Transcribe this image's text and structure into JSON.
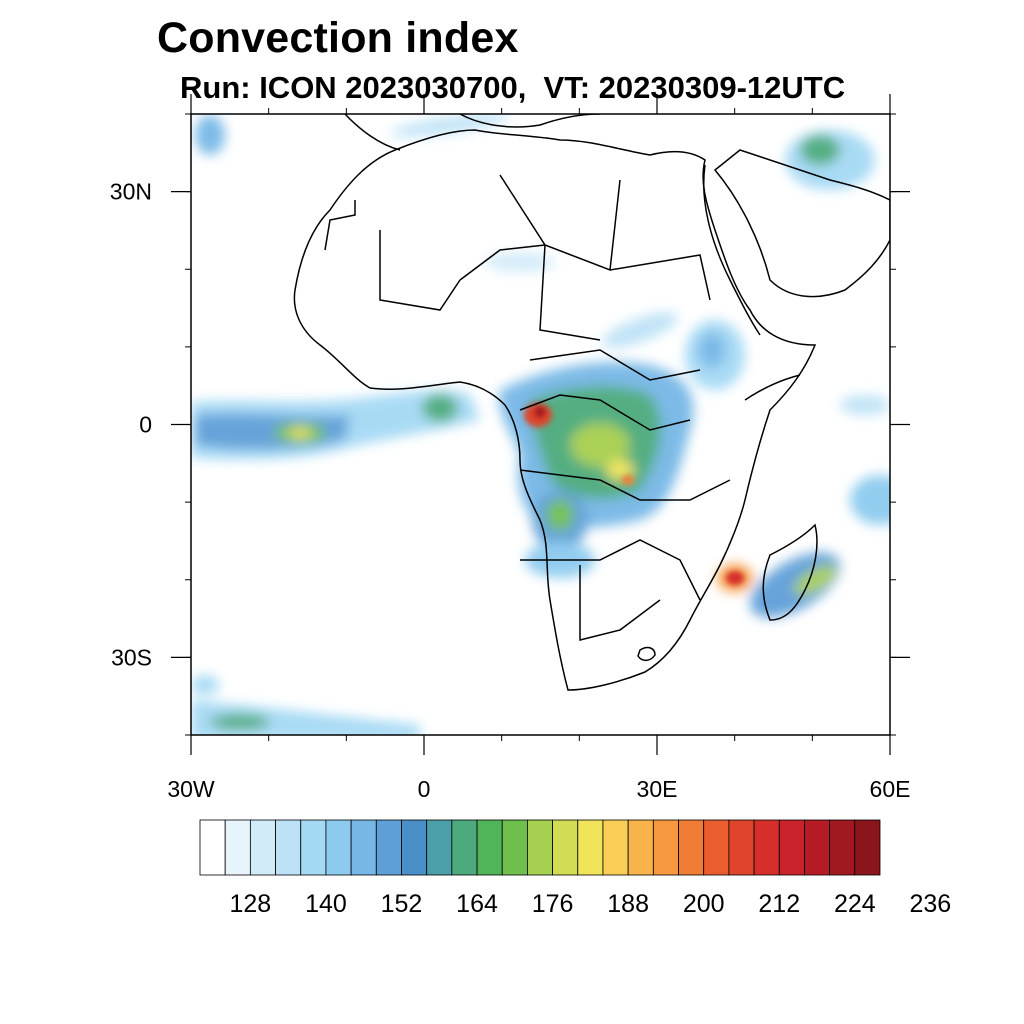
{
  "title": "Convection index",
  "subtitle": "Run: ICON 2023030700,  VT: 20230309-12UTC",
  "map": {
    "lon_range": [
      -30,
      60
    ],
    "lat_range": [
      -40,
      40
    ],
    "lon_ticks": [
      {
        "value": -30,
        "label": "30W"
      },
      {
        "value": 0,
        "label": "0"
      },
      {
        "value": 30,
        "label": "30E"
      },
      {
        "value": 60,
        "label": "60E"
      }
    ],
    "lat_ticks": [
      {
        "value": 30,
        "label": "30N"
      },
      {
        "value": 0,
        "label": "0"
      },
      {
        "value": -30,
        "label": "30S"
      }
    ],
    "minor_lon_step": 10,
    "minor_lat_step": 10
  },
  "colorbar": {
    "labels": [
      "128",
      "140",
      "152",
      "164",
      "176",
      "188",
      "200",
      "212",
      "224",
      "236"
    ],
    "colors": [
      "#ffffff",
      "#e8f4fc",
      "#d2ebf8",
      "#bde2f6",
      "#a4d9f4",
      "#8ccbef",
      "#76b7e6",
      "#5e9fd8",
      "#4a8fc8",
      "#4b9fa8",
      "#4caa7c",
      "#50b558",
      "#6ebf4e",
      "#a7cf50",
      "#d2dd55",
      "#efe45a",
      "#f9ce56",
      "#f8b34a",
      "#f5983e",
      "#f07c35",
      "#e95d2e",
      "#e0442b",
      "#d62f2b",
      "#c8222b",
      "#b41b24",
      "#a11920",
      "#8a161c"
    ]
  }
}
